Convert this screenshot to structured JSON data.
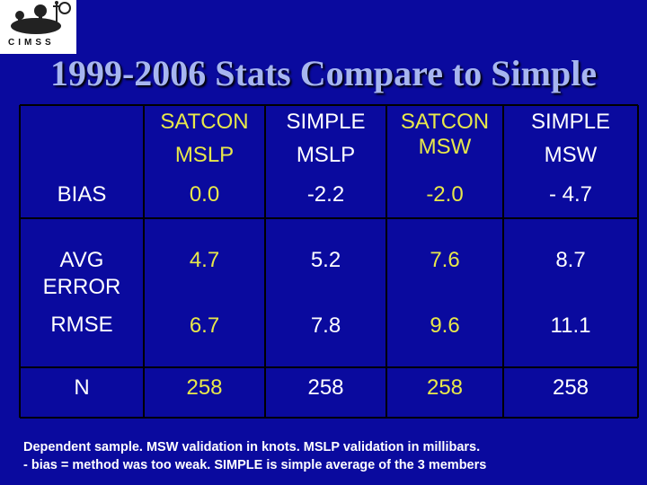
{
  "logo": {
    "text": "CIMSS"
  },
  "title": "1999-2006 Stats Compare to Simple",
  "table": {
    "headers": [
      [
        "SATCON",
        "MSLP"
      ],
      [
        "SIMPLE",
        "MSLP"
      ],
      [
        "SATCON",
        "MSW"
      ],
      [
        "SIMPLE",
        "MSW"
      ]
    ],
    "rows": [
      {
        "label": [
          "BIAS"
        ],
        "values": [
          "0.0",
          "-2.2",
          "-2.0",
          "- 4.7"
        ]
      },
      {
        "label": [
          "AVG",
          "ERROR"
        ],
        "values": [
          "4.7",
          "5.2",
          "7.6",
          "8.7"
        ]
      },
      {
        "label": [
          "RMSE"
        ],
        "values": [
          "6.7",
          "7.8",
          "9.6",
          "11.1"
        ]
      },
      {
        "label": [
          "N"
        ],
        "values": [
          "258",
          "258",
          "258",
          "258"
        ]
      }
    ]
  },
  "footnote": [
    "Dependent sample.  MSW validation in knots.  MSLP validation in millibars.",
    "- bias = method was too weak.  SIMPLE is simple average of the 3 members"
  ],
  "colors": {
    "background": "#0a0a9e",
    "title": "#a7b6f0",
    "grid": "#000000",
    "satcon_text": "#e8e84a",
    "simple_text": "#ffffff"
  }
}
